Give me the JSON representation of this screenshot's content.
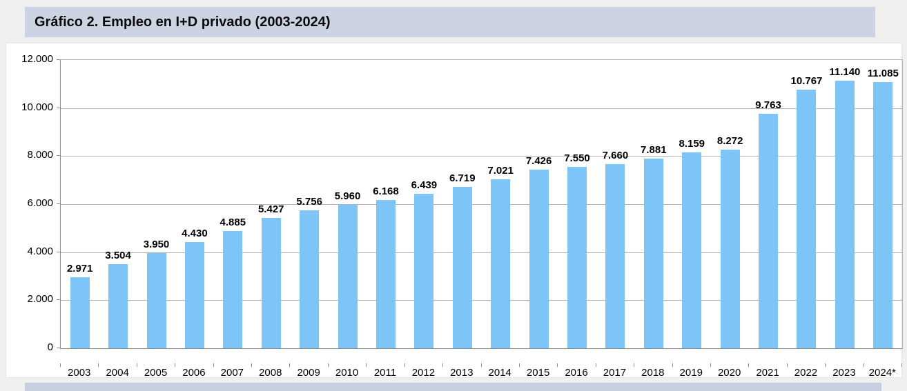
{
  "header": {
    "title": "Gráfico 2. Empleo en I+D privado (2003-2024)",
    "band_color": "#CDD3E3"
  },
  "footer": {
    "band_color": "#C7CEDF"
  },
  "chart_data": {
    "type": "bar",
    "title": "Gráfico 2. Empleo en I+D privado (2003-2024)",
    "categories": [
      "2003",
      "2004",
      "2005",
      "2006",
      "2007",
      "2008",
      "2009",
      "2010",
      "2011",
      "2012",
      "2013",
      "2014",
      "2015",
      "2016",
      "2017",
      "2018",
      "2019",
      "2020",
      "2021",
      "2022",
      "2023",
      "2024*"
    ],
    "values": [
      2971,
      3504,
      3950,
      4430,
      4885,
      5427,
      5756,
      5960,
      6168,
      6439,
      6719,
      7021,
      7426,
      7550,
      7660,
      7881,
      8159,
      8272,
      9763,
      10767,
      11140,
      11085
    ],
    "value_labels": [
      "2.971",
      "3.504",
      "3.950",
      "4.430",
      "4.885",
      "5.427",
      "5.756",
      "5.960",
      "6.168",
      "6.439",
      "6.719",
      "7.021",
      "7.426",
      "7.550",
      "7.660",
      "7.881",
      "8.159",
      "8.272",
      "9.763",
      "10.767",
      "11.140",
      "11.085"
    ],
    "y_tick_values": [
      0,
      2000,
      4000,
      6000,
      8000,
      10000,
      12000
    ],
    "y_tick_labels": [
      "0",
      "2.000",
      "4.000",
      "6.000",
      "8.000",
      "10.000",
      "12.000"
    ],
    "ylim": [
      0,
      12000
    ],
    "xlabel": "",
    "ylabel": "",
    "grid": true,
    "legend": false,
    "bar_color": "#7DC5F7"
  }
}
